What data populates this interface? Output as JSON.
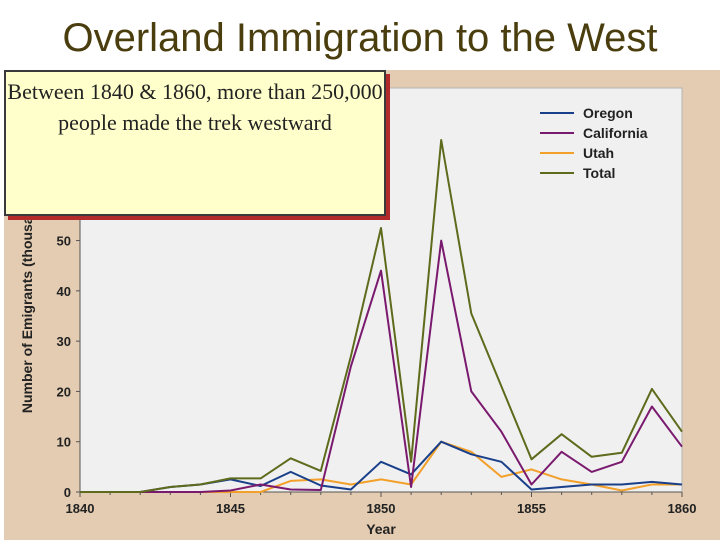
{
  "slide": {
    "title": "Overland Immigration to the West",
    "callout": "Between 1840 & 1860, more than 250,000 people made the trek westward"
  },
  "chart_data": {
    "type": "line",
    "xlabel": "Year",
    "ylabel": "Number of Emigrants (thousands)",
    "x_ticks": [
      "1840",
      "1845",
      "1850",
      "1855",
      "1860"
    ],
    "y_ticks": [
      "0",
      "10",
      "20",
      "30",
      "40",
      "50"
    ],
    "xlim": [
      1840,
      1860
    ],
    "ylim": [
      0,
      70
    ],
    "grid": false,
    "legend_position": "top-right",
    "colors": {
      "plot_bg": "#f0f0f0",
      "frame": "#e3ccb1",
      "Oregon": "#1a3f8a",
      "California": "#7a1a6e",
      "Utah": "#f2a02a",
      "Total": "#5e6a1c"
    },
    "series": [
      {
        "name": "Oregon",
        "points": [
          [
            1840,
            0
          ],
          [
            1841,
            0
          ],
          [
            1842,
            0
          ],
          [
            1843,
            1
          ],
          [
            1844,
            1.5
          ],
          [
            1845,
            2.5
          ],
          [
            1846,
            1.2
          ],
          [
            1847,
            4
          ],
          [
            1848,
            1.3
          ],
          [
            1849,
            0.5
          ],
          [
            1850,
            6
          ],
          [
            1851,
            3.5
          ],
          [
            1852,
            10
          ],
          [
            1853,
            7.5
          ],
          [
            1854,
            6
          ],
          [
            1855,
            0.5
          ],
          [
            1856,
            1
          ],
          [
            1857,
            1.5
          ],
          [
            1858,
            1.5
          ],
          [
            1859,
            2
          ],
          [
            1860,
            1.5
          ]
        ]
      },
      {
        "name": "California",
        "points": [
          [
            1840,
            0
          ],
          [
            1841,
            0
          ],
          [
            1842,
            0
          ],
          [
            1843,
            0
          ],
          [
            1844,
            0
          ],
          [
            1845,
            0.3
          ],
          [
            1846,
            1.5
          ],
          [
            1847,
            0.5
          ],
          [
            1848,
            0.4
          ],
          [
            1849,
            25
          ],
          [
            1850,
            44
          ],
          [
            1851,
            1
          ],
          [
            1852,
            50
          ],
          [
            1853,
            20
          ],
          [
            1854,
            12
          ],
          [
            1855,
            1.5
          ],
          [
            1856,
            8
          ],
          [
            1857,
            4
          ],
          [
            1858,
            6
          ],
          [
            1859,
            17
          ],
          [
            1860,
            9
          ]
        ]
      },
      {
        "name": "Utah",
        "points": [
          [
            1840,
            0
          ],
          [
            1841,
            0
          ],
          [
            1842,
            0
          ],
          [
            1843,
            0
          ],
          [
            1844,
            0
          ],
          [
            1845,
            0
          ],
          [
            1846,
            0
          ],
          [
            1847,
            2.2
          ],
          [
            1848,
            2.5
          ],
          [
            1849,
            1.5
          ],
          [
            1850,
            2.5
          ],
          [
            1851,
            1.5
          ],
          [
            1852,
            10
          ],
          [
            1853,
            8
          ],
          [
            1854,
            3
          ],
          [
            1855,
            4.5
          ],
          [
            1856,
            2.5
          ],
          [
            1857,
            1.5
          ],
          [
            1858,
            0.3
          ],
          [
            1859,
            1.5
          ],
          [
            1860,
            1.5
          ]
        ]
      },
      {
        "name": "Total",
        "points": [
          [
            1840,
            0
          ],
          [
            1841,
            0
          ],
          [
            1842,
            0
          ],
          [
            1843,
            1
          ],
          [
            1844,
            1.5
          ],
          [
            1845,
            2.7
          ],
          [
            1846,
            2.7
          ],
          [
            1847,
            6.7
          ],
          [
            1848,
            4.2
          ],
          [
            1849,
            27
          ],
          [
            1850,
            52.5
          ],
          [
            1851,
            6
          ],
          [
            1852,
            70
          ],
          [
            1853,
            35.5
          ],
          [
            1854,
            21
          ],
          [
            1855,
            6.5
          ],
          [
            1856,
            11.5
          ],
          [
            1857,
            7
          ],
          [
            1858,
            7.8
          ],
          [
            1859,
            20.5
          ],
          [
            1860,
            12
          ]
        ]
      }
    ]
  }
}
